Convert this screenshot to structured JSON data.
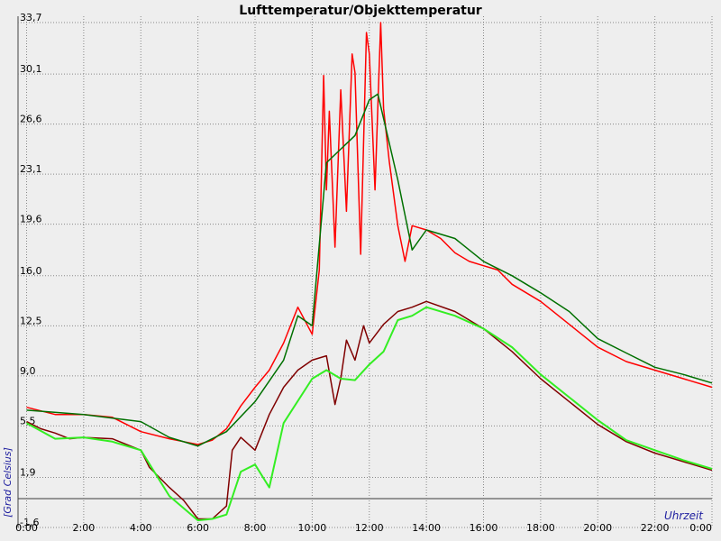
{
  "chart_data": {
    "type": "line",
    "title": "Lufttemperatur/Objekttemperatur",
    "y_label": "[Grad Celsius]",
    "x_label": "Uhrzeit",
    "xlim": [
      -0.3,
      24
    ],
    "ylim": [
      -1.6,
      33.7
    ],
    "grid": true,
    "xticks": [
      {
        "value": 0,
        "label": "0:00"
      },
      {
        "value": 2,
        "label": "2:00"
      },
      {
        "value": 4,
        "label": "4:00"
      },
      {
        "value": 6,
        "label": "6:00"
      },
      {
        "value": 8,
        "label": "8:00"
      },
      {
        "value": 10,
        "label": "10:00"
      },
      {
        "value": 12,
        "label": "12:00"
      },
      {
        "value": 14,
        "label": "14:00"
      },
      {
        "value": 16,
        "label": "16:00"
      },
      {
        "value": 18,
        "label": "18:00"
      },
      {
        "value": 20,
        "label": "20:00"
      },
      {
        "value": 22,
        "label": "22:00"
      },
      {
        "value": 24,
        "label": "0:00"
      }
    ],
    "yticks": [
      {
        "value": -1.6,
        "label": "-1,6"
      },
      {
        "value": 1.9,
        "label": "1,9"
      },
      {
        "value": 5.5,
        "label": "5,5"
      },
      {
        "value": 9.0,
        "label": "9,0"
      },
      {
        "value": 12.5,
        "label": "12,5"
      },
      {
        "value": 16.0,
        "label": "16,0"
      },
      {
        "value": 19.6,
        "label": "19,6"
      },
      {
        "value": 23.1,
        "label": "23,1"
      },
      {
        "value": 26.6,
        "label": "26,6"
      },
      {
        "value": 30.1,
        "label": "30,1"
      },
      {
        "value": 33.7,
        "label": "33,7"
      }
    ],
    "series": [
      {
        "color": "#ff0000",
        "width": 1.5,
        "x": [
          0,
          1,
          2,
          3,
          4,
          5,
          5.5,
          6,
          6.5,
          7,
          7.5,
          8,
          8.5,
          9,
          9.5,
          10,
          10.25,
          10.4,
          10.5,
          10.6,
          10.8,
          11,
          11.2,
          11.4,
          11.5,
          11.7,
          11.9,
          12,
          12.2,
          12.4,
          12.5,
          12.7,
          13,
          13.25,
          13.5,
          14,
          14.5,
          15,
          15.5,
          16,
          16.5,
          17,
          17.5,
          18,
          19,
          20,
          21,
          22,
          23,
          24
        ],
        "values": [
          6.8,
          6.3,
          6.3,
          6.1,
          5.1,
          4.6,
          4.4,
          4.2,
          4.5,
          5.3,
          6.9,
          8.2,
          9.4,
          11.3,
          13.8,
          11.9,
          16.4,
          30.0,
          22.0,
          27.5,
          18.0,
          29.0,
          20.5,
          31.5,
          30.2,
          17.5,
          33.0,
          31.5,
          22.0,
          33.7,
          27.7,
          24.0,
          19.5,
          17.0,
          19.5,
          19.2,
          18.6,
          17.6,
          17.0,
          16.7,
          16.4,
          15.4,
          14.8,
          14.2,
          12.6,
          11.0,
          10.0,
          9.4,
          8.8,
          8.2
        ]
      },
      {
        "color": "#007000",
        "width": 1.5,
        "x": [
          0,
          2,
          4,
          5,
          6,
          7,
          8,
          9,
          9.5,
          10,
          10.5,
          11.5,
          12,
          12.3,
          13,
          13.5,
          14,
          15,
          16,
          17,
          18,
          19,
          20,
          21,
          22,
          23,
          24
        ],
        "values": [
          6.6,
          6.3,
          5.8,
          4.7,
          4.1,
          5.1,
          7.2,
          10.1,
          13.2,
          12.5,
          23.9,
          25.8,
          28.3,
          28.7,
          22.7,
          17.8,
          19.2,
          18.6,
          17.0,
          16.0,
          14.8,
          13.5,
          11.6,
          10.6,
          9.6,
          9.1,
          8.5
        ]
      },
      {
        "color": "#800000",
        "width": 1.5,
        "x": [
          0,
          0.5,
          1,
          1.5,
          2,
          3,
          4,
          4.3,
          5,
          5.5,
          6,
          6.5,
          7,
          7.2,
          7.5,
          8,
          8.5,
          9,
          9.5,
          10,
          10.5,
          10.8,
          11,
          11.2,
          11.5,
          11.8,
          12,
          12.5,
          13,
          13.5,
          14,
          15,
          16,
          17,
          18,
          19,
          20,
          21,
          22,
          23,
          24
        ],
        "values": [
          5.8,
          5.3,
          5.0,
          4.6,
          4.7,
          4.6,
          3.8,
          2.6,
          1.2,
          0.3,
          -1.0,
          -1.0,
          -0.1,
          3.8,
          4.7,
          3.8,
          6.3,
          8.2,
          9.4,
          10.1,
          10.4,
          7.0,
          8.8,
          11.5,
          10.1,
          12.5,
          11.3,
          12.6,
          13.5,
          13.8,
          14.2,
          13.5,
          12.3,
          10.7,
          8.8,
          7.2,
          5.6,
          4.4,
          3.6,
          3.0,
          2.4
        ]
      },
      {
        "color": "#33ee22",
        "width": 2,
        "x": [
          0,
          1,
          2,
          3,
          4,
          5,
          6,
          6.5,
          7,
          7.5,
          8,
          8.5,
          9,
          10,
          10.5,
          11,
          11.5,
          12,
          12.5,
          13,
          13.5,
          14,
          15,
          16,
          17,
          18,
          19,
          20,
          21,
          22,
          23,
          24
        ],
        "values": [
          5.7,
          4.6,
          4.7,
          4.4,
          3.8,
          0.6,
          -1.1,
          -1.0,
          -0.7,
          2.3,
          2.8,
          1.2,
          5.7,
          8.8,
          9.4,
          8.8,
          8.7,
          9.8,
          10.7,
          12.9,
          13.2,
          13.8,
          13.2,
          12.3,
          11.0,
          9.1,
          7.5,
          5.9,
          4.5,
          3.8,
          3.1,
          2.5
        ]
      }
    ]
  }
}
